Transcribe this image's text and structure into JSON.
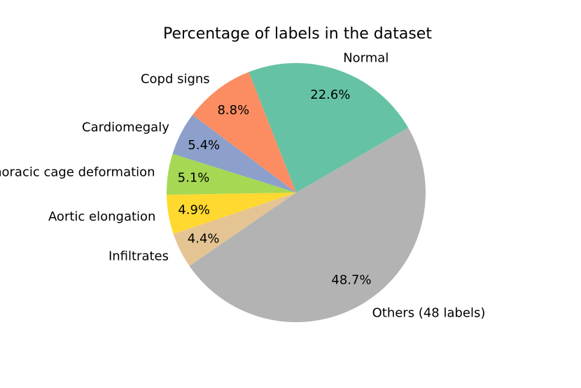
{
  "chart_data": {
    "type": "pie",
    "title": "Percentage of labels in the dataset",
    "slices": [
      {
        "label": "Normal",
        "value": 22.6,
        "pct_label": "22.6%",
        "color": "#66c2a5"
      },
      {
        "label": "Copd signs",
        "value": 8.8,
        "pct_label": "8.8%",
        "color": "#fc8d62"
      },
      {
        "label": "Cardiomegaly",
        "value": 5.4,
        "pct_label": "5.4%",
        "color": "#8da0cb"
      },
      {
        "label": "Thoracic cage deformation",
        "value": 5.1,
        "pct_label": "5.1%",
        "color": "#a6d854"
      },
      {
        "label": "Aortic elongation",
        "value": 4.9,
        "pct_label": "4.9%",
        "color": "#ffd92f"
      },
      {
        "label": "Infiltrates",
        "value": 4.4,
        "pct_label": "4.4%",
        "color": "#e5c494"
      },
      {
        "label": "Others (48 labels)",
        "value": 48.7,
        "pct_label": "48.7%",
        "color": "#b3b3b3"
      }
    ],
    "start_angle_deg": 30,
    "direction": "counterclockwise"
  }
}
